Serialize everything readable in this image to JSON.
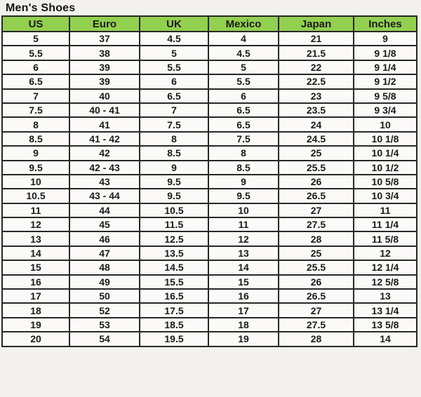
{
  "page": {
    "title": "Men's Shoes"
  },
  "colors": {
    "header_bg": "#92d050",
    "cell_bg": "#fbfaf8",
    "border": "#272727",
    "page_bg": "#f2f1ee",
    "text": "#1a1a1a"
  },
  "chart_data": {
    "type": "table",
    "title": "Men's Shoes",
    "columns": [
      "US",
      "Euro",
      "UK",
      "Mexico",
      "Japan",
      "Inches"
    ],
    "rows": [
      [
        "5",
        "37",
        "4.5",
        "4",
        "21",
        "9"
      ],
      [
        "5.5",
        "38",
        "5",
        "4.5",
        "21.5",
        "9 1/8"
      ],
      [
        "6",
        "39",
        "5.5",
        "5",
        "22",
        "9 1/4"
      ],
      [
        "6.5",
        "39",
        "6",
        "5.5",
        "22.5",
        "9 1/2"
      ],
      [
        "7",
        "40",
        "6.5",
        "6",
        "23",
        "9 5/8"
      ],
      [
        "7.5",
        "40 - 41",
        "7",
        "6.5",
        "23.5",
        "9 3/4"
      ],
      [
        "8",
        "41",
        "7.5",
        "6.5",
        "24",
        "10"
      ],
      [
        "8.5",
        "41 - 42",
        "8",
        "7.5",
        "24.5",
        "10 1/8"
      ],
      [
        "9",
        "42",
        "8.5",
        "8",
        "25",
        "10 1/4"
      ],
      [
        "9.5",
        "42 - 43",
        "9",
        "8.5",
        "25.5",
        "10 1/2"
      ],
      [
        "10",
        "43",
        "9.5",
        "9",
        "26",
        "10 5/8"
      ],
      [
        "10.5",
        "43 - 44",
        "9.5",
        "9.5",
        "26.5",
        "10 3/4"
      ],
      [
        "11",
        "44",
        "10.5",
        "10",
        "27",
        "11"
      ],
      [
        "12",
        "45",
        "11.5",
        "11",
        "27.5",
        "11 1/4"
      ],
      [
        "13",
        "46",
        "12.5",
        "12",
        "28",
        "11 5/8"
      ],
      [
        "14",
        "47",
        "13.5",
        "13",
        "25",
        "12"
      ],
      [
        "15",
        "48",
        "14.5",
        "14",
        "25.5",
        "12 1/4"
      ],
      [
        "16",
        "49",
        "15.5",
        "15",
        "26",
        "12 5/8"
      ],
      [
        "17",
        "50",
        "16.5",
        "16",
        "26.5",
        "13"
      ],
      [
        "18",
        "52",
        "17.5",
        "17",
        "27",
        "13 1/4"
      ],
      [
        "19",
        "53",
        "18.5",
        "18",
        "27.5",
        "13 5/8"
      ],
      [
        "20",
        "54",
        "19.5",
        "19",
        "28",
        "14"
      ]
    ]
  }
}
